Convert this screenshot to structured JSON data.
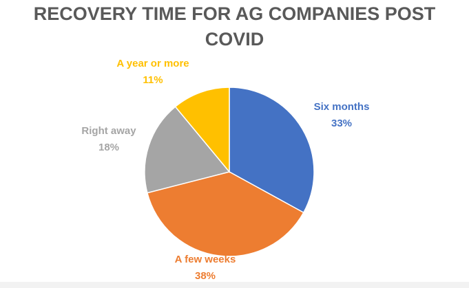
{
  "chart_data": {
    "type": "pie",
    "title_lines": [
      "RECOVERY TIME FOR AG COMPANIES POST",
      "COVID"
    ],
    "slices": [
      {
        "label": "Six months",
        "value": 33,
        "value_label": "33%",
        "color": "#4472C4"
      },
      {
        "label": "A few weeks",
        "value": 38,
        "value_label": "38%",
        "color": "#ED7D31"
      },
      {
        "label": "Right away",
        "value": 18,
        "value_label": "18%",
        "color": "#A5A5A5"
      },
      {
        "label": "A year or more",
        "value": 11,
        "value_label": "11%",
        "color": "#FFC000"
      }
    ],
    "start_angle_deg": 0,
    "direction": "clockwise"
  }
}
